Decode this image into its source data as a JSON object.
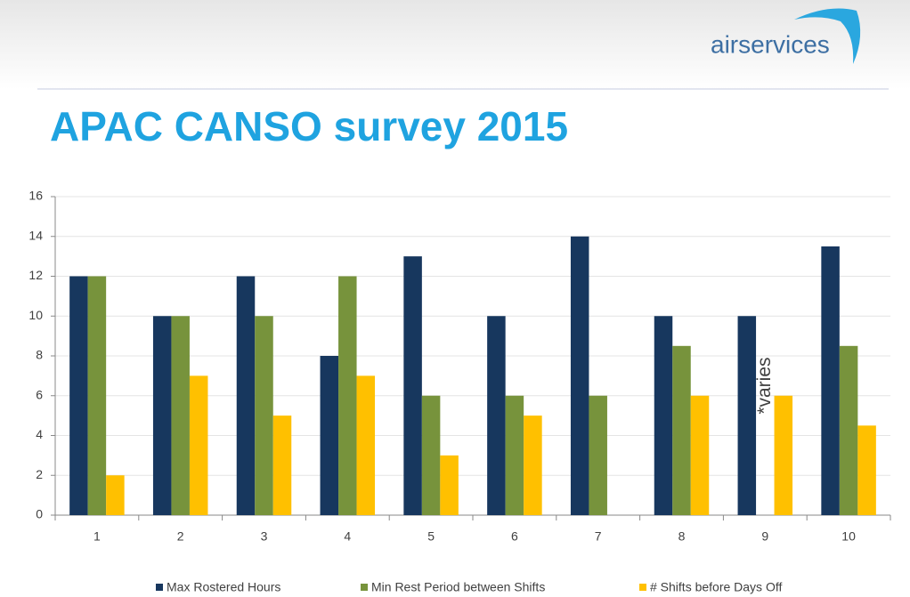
{
  "logo": "airservices",
  "chart_data": {
    "type": "bar",
    "title": "APAC CANSO survey 2015",
    "categories": [
      "1",
      "2",
      "3",
      "4",
      "5",
      "6",
      "7",
      "8",
      "9",
      "10"
    ],
    "series": [
      {
        "name": "Max Rostered Hours",
        "color": "#17375e",
        "values": [
          12,
          10,
          12,
          8,
          13,
          10,
          14,
          10,
          10,
          13.5
        ]
      },
      {
        "name": "Min Rest Period between Shifts",
        "color": "#77933c",
        "values": [
          12,
          10,
          10,
          12,
          6,
          6,
          6,
          8.5,
          null,
          8.5
        ]
      },
      {
        "name": "# Shifts before Days Off",
        "color": "#ffc000",
        "values": [
          2,
          7,
          5,
          7,
          3,
          5,
          null,
          6,
          6,
          4.5
        ]
      }
    ],
    "annotation": "*varies",
    "ylim": [
      0,
      16
    ],
    "yticks": [
      0,
      2,
      4,
      6,
      8,
      10,
      12,
      14,
      16
    ],
    "grid": true,
    "legend": "bottom"
  }
}
